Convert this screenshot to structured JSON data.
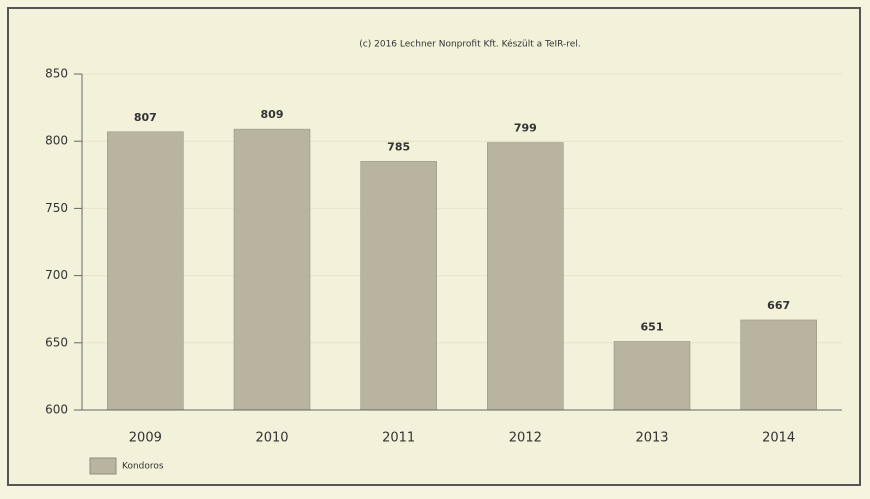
{
  "chart_data": {
    "type": "bar",
    "title": "(c) 2016 Lechner Nonprofit Kft. Készült a TeIR-rel.",
    "categories": [
      "2009",
      "2010",
      "2011",
      "2012",
      "2013",
      "2014"
    ],
    "series": [
      {
        "name": "Kondoros",
        "color": "#b8b49f",
        "values": [
          807,
          809,
          785,
          799,
          651,
          667
        ]
      }
    ],
    "ylim": [
      600,
      850
    ],
    "yticks": [
      600,
      650,
      700,
      750,
      800,
      850
    ],
    "grid": true,
    "legend": "bottom-left"
  }
}
